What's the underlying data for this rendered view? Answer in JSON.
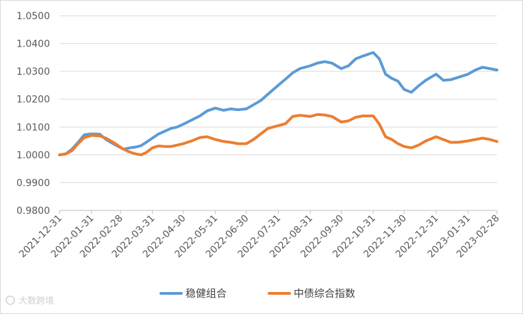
{
  "chart_data": {
    "type": "line",
    "yticks": [
      "1.0500",
      "1.0400",
      "1.0300",
      "1.0200",
      "1.0100",
      "1.0000",
      "0.9900",
      "0.9800"
    ],
    "ylim": [
      0.98,
      1.05
    ],
    "x": [
      "2021-12-31",
      "2022-01-31",
      "2022-02-28",
      "2022-03-31",
      "2022-04-30",
      "2022-05-31",
      "2022-06-30",
      "2022-07-31",
      "2022-08-31",
      "2022-09-30",
      "2022-10-31",
      "2022-11-30",
      "2022-12-31",
      "2023-01-31",
      "2023-02-28"
    ],
    "grid": "horizontal",
    "legend_position": "bottom",
    "series": [
      {
        "name": "稳健组合",
        "color": "#5B9BD5",
        "x": [
          "2021-12-31",
          "2022-01-06",
          "2022-01-12",
          "2022-01-18",
          "2022-01-24",
          "2022-01-31",
          "2022-02-08",
          "2022-02-14",
          "2022-02-21",
          "2022-02-25",
          "2022-03-03",
          "2022-03-09",
          "2022-03-15",
          "2022-03-20",
          "2022-03-25",
          "2022-03-31",
          "2022-04-06",
          "2022-04-12",
          "2022-04-18",
          "2022-04-24",
          "2022-04-30",
          "2022-05-08",
          "2022-05-16",
          "2022-05-23",
          "2022-05-31",
          "2022-06-08",
          "2022-06-15",
          "2022-06-22",
          "2022-06-30",
          "2022-07-07",
          "2022-07-14",
          "2022-07-21",
          "2022-07-31",
          "2022-08-07",
          "2022-08-14",
          "2022-08-21",
          "2022-08-31",
          "2022-09-07",
          "2022-09-14",
          "2022-09-21",
          "2022-09-30",
          "2022-10-07",
          "2022-10-14",
          "2022-10-21",
          "2022-10-31",
          "2022-11-06",
          "2022-11-12",
          "2022-11-18",
          "2022-11-24",
          "2022-11-30",
          "2022-12-07",
          "2022-12-14",
          "2022-12-21",
          "2022-12-31",
          "2023-01-07",
          "2023-01-14",
          "2023-01-21",
          "2023-01-31",
          "2023-02-07",
          "2023-02-14",
          "2023-02-21",
          "2023-02-28"
        ],
        "values": [
          1.0,
          1.0003,
          1.002,
          1.0045,
          1.0072,
          1.0075,
          1.0074,
          1.0055,
          1.004,
          1.0032,
          1.002,
          1.0025,
          1.0028,
          1.0033,
          1.0045,
          1.006,
          1.0075,
          1.0085,
          1.0095,
          1.01,
          1.011,
          1.0125,
          1.014,
          1.0158,
          1.0168,
          1.016,
          1.0165,
          1.0162,
          1.0165,
          1.018,
          1.0195,
          1.0218,
          1.025,
          1.0272,
          1.0295,
          1.031,
          1.032,
          1.033,
          1.0335,
          1.033,
          1.031,
          1.032,
          1.0345,
          1.0355,
          1.0368,
          1.0345,
          1.029,
          1.0275,
          1.0265,
          1.0235,
          1.0225,
          1.0248,
          1.0268,
          1.029,
          1.0268,
          1.027,
          1.0278,
          1.029,
          1.0305,
          1.0315,
          1.031,
          1.0305
        ]
      },
      {
        "name": "中债综合指数",
        "color": "#ED7D31",
        "x": [
          "2021-12-31",
          "2022-01-06",
          "2022-01-12",
          "2022-01-18",
          "2022-01-24",
          "2022-01-31",
          "2022-02-08",
          "2022-02-14",
          "2022-02-21",
          "2022-02-25",
          "2022-03-03",
          "2022-03-09",
          "2022-03-15",
          "2022-03-20",
          "2022-03-25",
          "2022-03-31",
          "2022-04-06",
          "2022-04-12",
          "2022-04-18",
          "2022-04-24",
          "2022-04-30",
          "2022-05-08",
          "2022-05-16",
          "2022-05-23",
          "2022-05-31",
          "2022-06-08",
          "2022-06-15",
          "2022-06-22",
          "2022-06-30",
          "2022-07-07",
          "2022-07-14",
          "2022-07-21",
          "2022-07-31",
          "2022-08-07",
          "2022-08-14",
          "2022-08-21",
          "2022-08-31",
          "2022-09-07",
          "2022-09-14",
          "2022-09-21",
          "2022-09-30",
          "2022-10-07",
          "2022-10-14",
          "2022-10-21",
          "2022-10-31",
          "2022-11-06",
          "2022-11-12",
          "2022-11-18",
          "2022-11-24",
          "2022-11-30",
          "2022-12-07",
          "2022-12-14",
          "2022-12-21",
          "2022-12-31",
          "2023-01-07",
          "2023-01-14",
          "2023-01-21",
          "2023-01-31",
          "2023-02-07",
          "2023-02-14",
          "2023-02-21",
          "2023-02-28"
        ],
        "values": [
          1.0,
          1.0003,
          1.0015,
          1.004,
          1.0062,
          1.007,
          1.0068,
          1.006,
          1.0045,
          1.0035,
          1.002,
          1.001,
          1.0003,
          1.0,
          1.0008,
          1.0025,
          1.0032,
          1.003,
          1.003,
          1.0035,
          1.004,
          1.005,
          1.0062,
          1.0065,
          1.0055,
          1.0048,
          1.0045,
          1.004,
          1.004,
          1.0055,
          1.0075,
          1.0095,
          1.0105,
          1.0112,
          1.0138,
          1.0142,
          1.0138,
          1.0145,
          1.0143,
          1.0138,
          1.0118,
          1.0122,
          1.0135,
          1.014,
          1.014,
          1.011,
          1.0065,
          1.0055,
          1.004,
          1.003,
          1.0025,
          1.0035,
          1.005,
          1.0065,
          1.0055,
          1.0045,
          1.0045,
          1.005,
          1.0055,
          1.006,
          1.0055,
          1.0048
        ]
      }
    ]
  },
  "watermark": "大数跨境"
}
